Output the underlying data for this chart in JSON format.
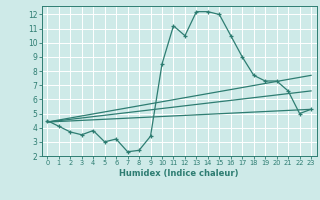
{
  "xlabel": "Humidex (Indice chaleur)",
  "background_color": "#ceeae8",
  "grid_color": "#ffffff",
  "line_color": "#2e7d72",
  "xlim": [
    -0.5,
    23.5
  ],
  "ylim": [
    2,
    12.6
  ],
  "xticks": [
    0,
    1,
    2,
    3,
    4,
    5,
    6,
    7,
    8,
    9,
    10,
    11,
    12,
    13,
    14,
    15,
    16,
    17,
    18,
    19,
    20,
    21,
    22,
    23
  ],
  "yticks": [
    2,
    3,
    4,
    5,
    6,
    7,
    8,
    9,
    10,
    11,
    12
  ],
  "line1_x": [
    0,
    1,
    2,
    3,
    4,
    5,
    6,
    7,
    8,
    9,
    10,
    11,
    12,
    13,
    14,
    15,
    16,
    17,
    18,
    19,
    20,
    21,
    22,
    23
  ],
  "line1_y": [
    4.5,
    4.1,
    3.7,
    3.5,
    3.8,
    3.0,
    3.2,
    2.3,
    2.4,
    3.4,
    8.5,
    11.2,
    10.5,
    12.2,
    12.2,
    12.0,
    10.5,
    9.0,
    7.7,
    7.3,
    7.3,
    6.6,
    5.0,
    5.3
  ],
  "line2_x": [
    0,
    23
  ],
  "line2_y": [
    4.4,
    5.3
  ],
  "line3_x": [
    0,
    23
  ],
  "line3_y": [
    4.4,
    6.6
  ],
  "line4_x": [
    0,
    23
  ],
  "line4_y": [
    4.4,
    7.7
  ]
}
